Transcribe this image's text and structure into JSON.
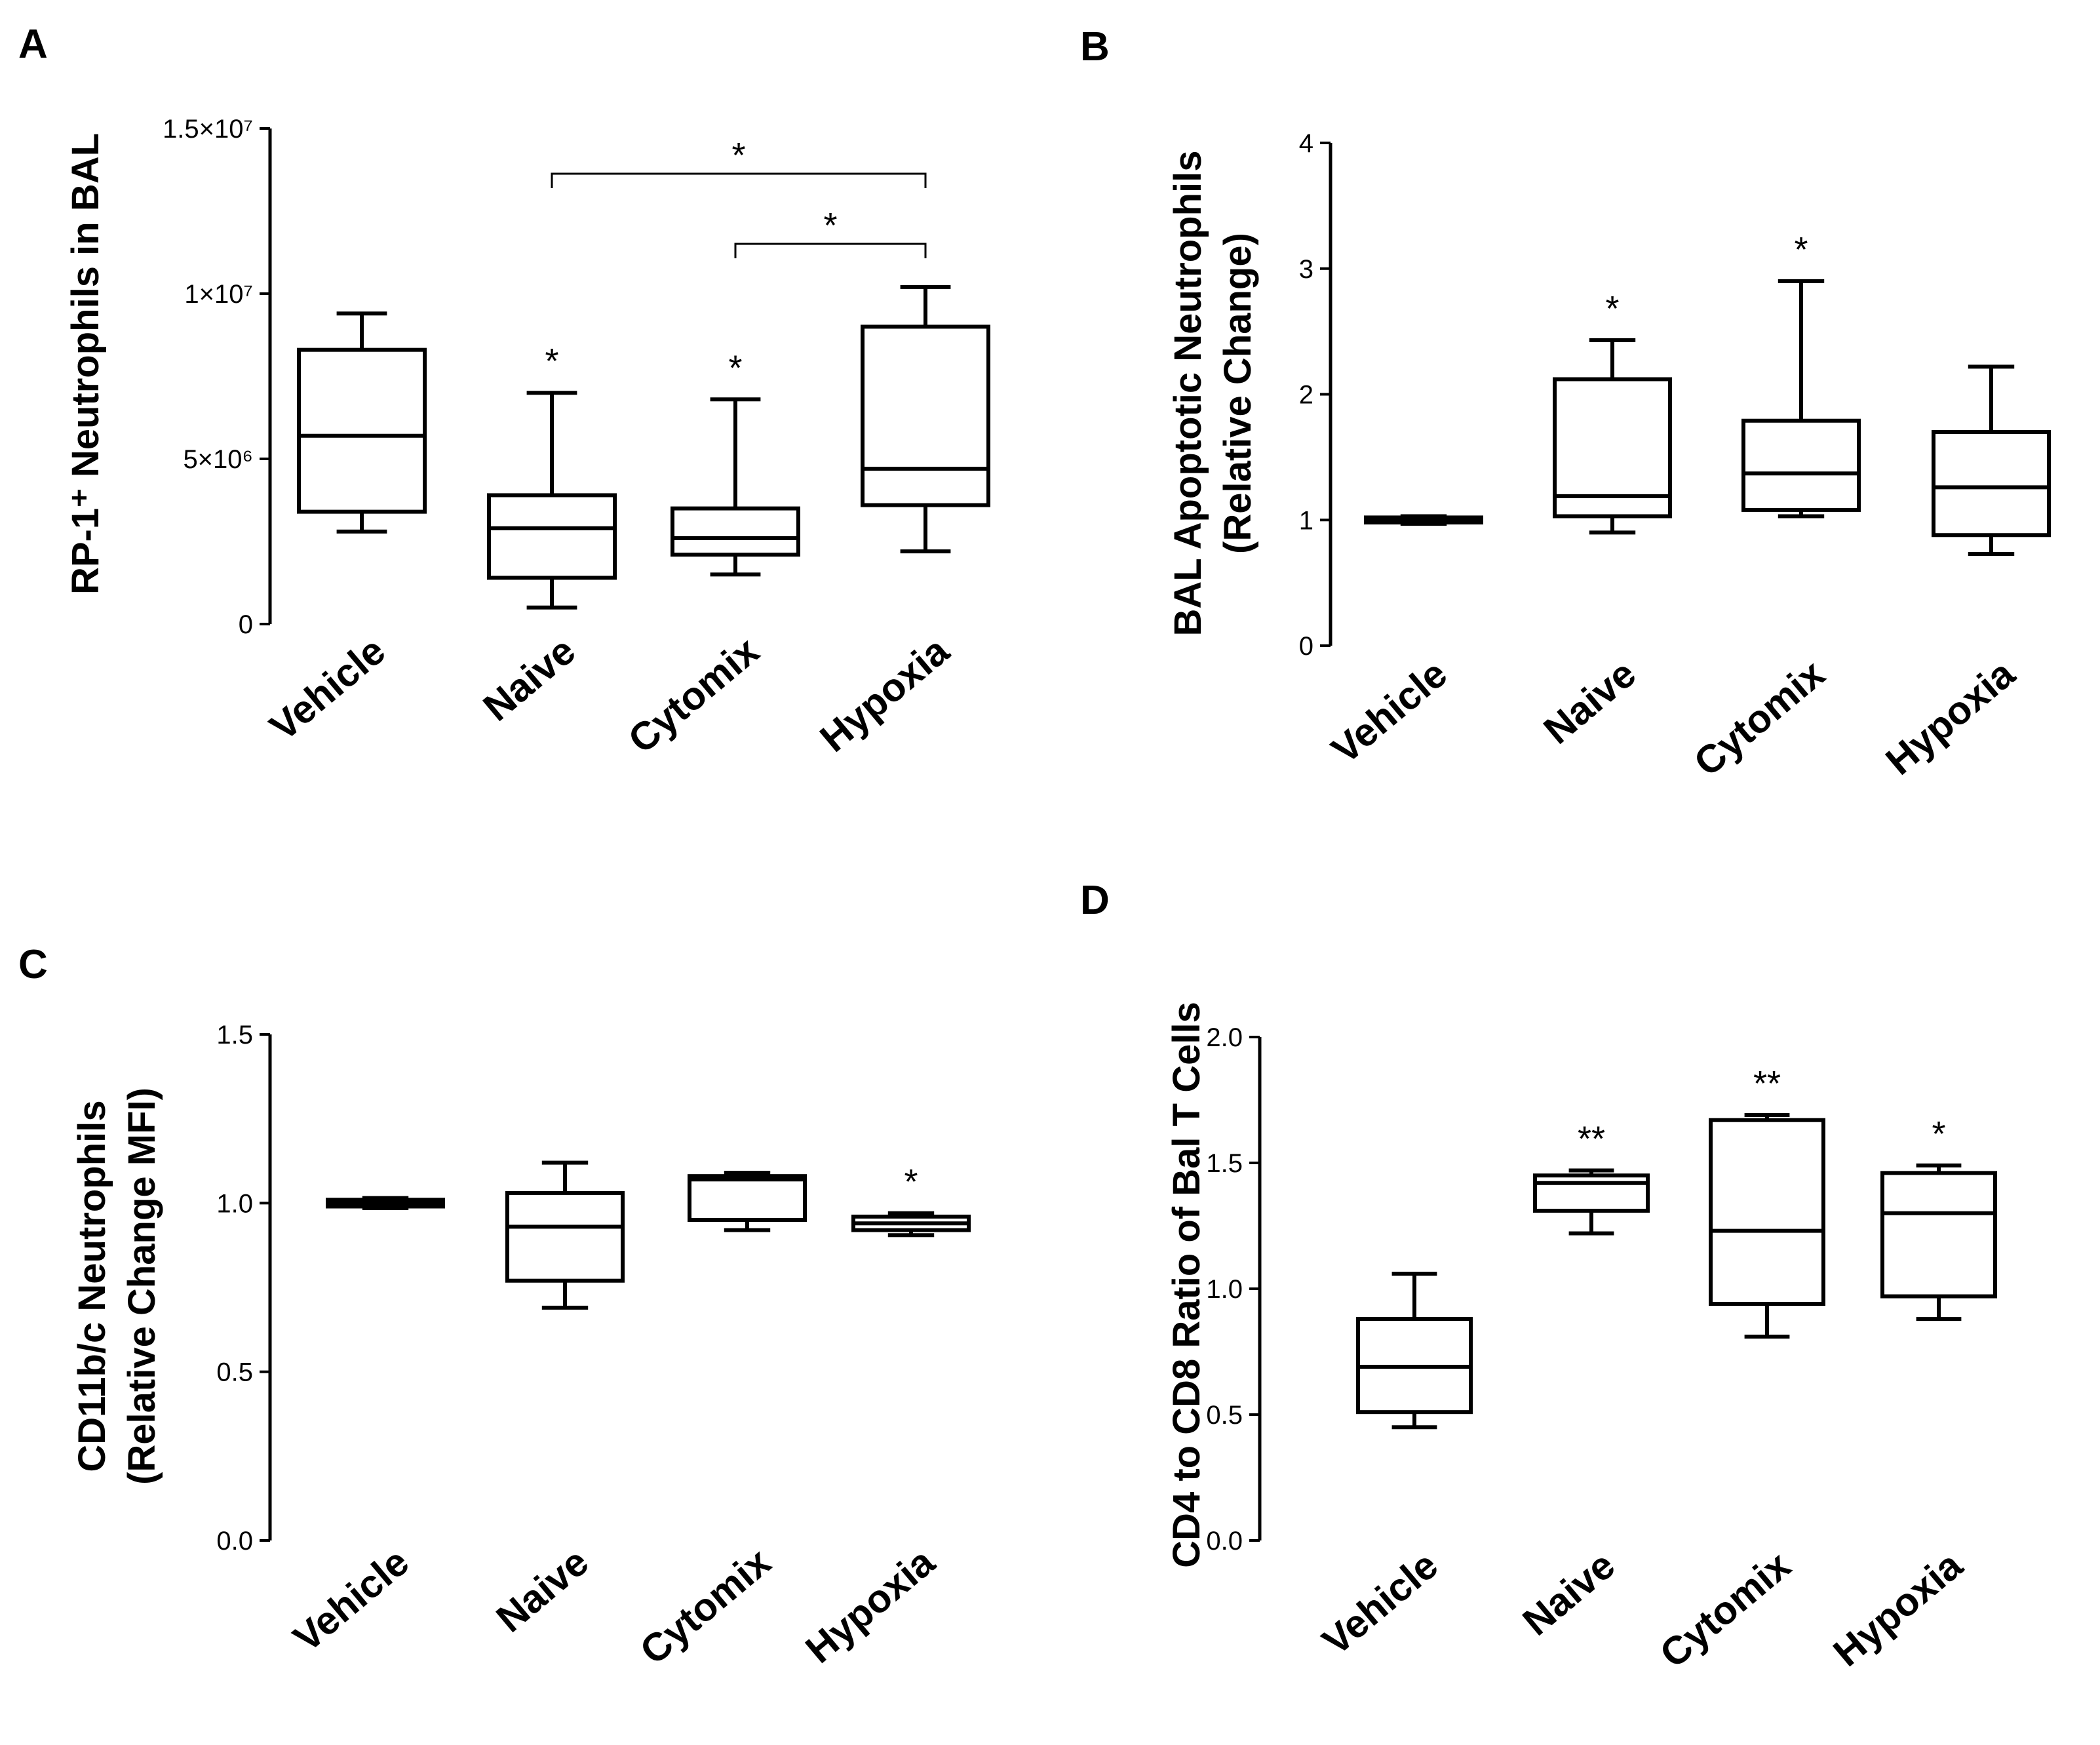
{
  "chart_data": [
    {
      "panel": "A",
      "type": "box",
      "ylabel": "RP-1⁺ Neutrophils in  BAL",
      "categories": [
        "Vehicle",
        "Naive",
        "Cytomix",
        "Hypoxia"
      ],
      "ylim": [
        0,
        15000000
      ],
      "yticks": [
        {
          "value": 0,
          "label": "0"
        },
        {
          "value": 5000000,
          "label": "5×10⁶"
        },
        {
          "value": 10000000,
          "label": "1×10⁷"
        },
        {
          "value": 15000000,
          "label": "1.5×10⁷"
        }
      ],
      "boxes": [
        {
          "min": 2800000,
          "q1": 3400000,
          "median": 5700000,
          "q3": 8300000,
          "max": 9400000,
          "annotation": ""
        },
        {
          "min": 500000,
          "q1": 1400000,
          "median": 2900000,
          "q3": 3900000,
          "max": 7000000,
          "annotation": "*"
        },
        {
          "min": 1500000,
          "q1": 2100000,
          "median": 2600000,
          "q3": 3500000,
          "max": 6800000,
          "annotation": "*"
        },
        {
          "min": 2200000,
          "q1": 3600000,
          "median": 4700000,
          "q3": 9000000,
          "max": 10200000,
          "annotation": ""
        }
      ],
      "brackets": [
        {
          "from": 1,
          "to": 3,
          "label": "*"
        },
        {
          "from": 2,
          "to": 3,
          "label": "*"
        }
      ]
    },
    {
      "panel": "B",
      "type": "box",
      "ylabel": "BAL Apoptotic Neutrophils\n(Relative Change)",
      "categories": [
        "Vehicle",
        "Naive",
        "Cytomix",
        "Hypoxia"
      ],
      "ylim": [
        0,
        4
      ],
      "yticks": [
        {
          "value": 0,
          "label": "0"
        },
        {
          "value": 1,
          "label": "1"
        },
        {
          "value": 2,
          "label": "2"
        },
        {
          "value": 3,
          "label": "3"
        },
        {
          "value": 4,
          "label": "4"
        }
      ],
      "boxes": [
        {
          "min": 0.97,
          "q1": 0.98,
          "median": 1.0,
          "q3": 1.02,
          "max": 1.03,
          "annotation": ""
        },
        {
          "min": 0.9,
          "q1": 1.03,
          "median": 1.19,
          "q3": 2.12,
          "max": 2.43,
          "annotation": "*"
        },
        {
          "min": 1.03,
          "q1": 1.08,
          "median": 1.37,
          "q3": 1.79,
          "max": 2.9,
          "annotation": "*"
        },
        {
          "min": 0.73,
          "q1": 0.88,
          "median": 1.26,
          "q3": 1.7,
          "max": 2.22,
          "annotation": ""
        }
      ],
      "brackets": []
    },
    {
      "panel": "C",
      "type": "box",
      "ylabel": "CD11b/c Neutrophils\n(Relative Change MFI)",
      "categories": [
        "Vehicle",
        "Naive",
        "Cytomix",
        "Hypoxia"
      ],
      "ylim": [
        0,
        1.5
      ],
      "yticks": [
        {
          "value": 0,
          "label": "0.0"
        },
        {
          "value": 0.5,
          "label": "0.5"
        },
        {
          "value": 1,
          "label": "1.0"
        },
        {
          "value": 1.5,
          "label": "1.5"
        }
      ],
      "boxes": [
        {
          "min": 0.985,
          "q1": 0.99,
          "median": 1.0,
          "q3": 1.01,
          "max": 1.015,
          "annotation": ""
        },
        {
          "min": 0.69,
          "q1": 0.77,
          "median": 0.93,
          "q3": 1.03,
          "max": 1.12,
          "annotation": ""
        },
        {
          "min": 0.92,
          "q1": 0.95,
          "median": 1.07,
          "q3": 1.08,
          "max": 1.09,
          "annotation": ""
        },
        {
          "min": 0.905,
          "q1": 0.92,
          "median": 0.94,
          "q3": 0.96,
          "max": 0.97,
          "annotation": "*"
        }
      ],
      "brackets": []
    },
    {
      "panel": "D",
      "type": "box",
      "ylabel": "CD4 to CD8 Ratio of Bal T Cells",
      "categories": [
        "Vehicle",
        "Naive",
        "Cytomix",
        "Hypoxia"
      ],
      "ylim": [
        0,
        2.0
      ],
      "yticks": [
        {
          "value": 0,
          "label": "0.0"
        },
        {
          "value": 0.5,
          "label": "0.5"
        },
        {
          "value": 1,
          "label": "1.0"
        },
        {
          "value": 1.5,
          "label": "1.5"
        },
        {
          "value": 2,
          "label": "2.0"
        }
      ],
      "boxes": [
        {
          "min": 0.45,
          "q1": 0.51,
          "median": 0.69,
          "q3": 0.88,
          "max": 1.06,
          "annotation": ""
        },
        {
          "min": 1.22,
          "q1": 1.31,
          "median": 1.42,
          "q3": 1.45,
          "max": 1.47,
          "annotation": "**"
        },
        {
          "min": 0.81,
          "q1": 0.94,
          "median": 1.23,
          "q3": 1.67,
          "max": 1.69,
          "annotation": "**"
        },
        {
          "min": 0.88,
          "q1": 0.97,
          "median": 1.3,
          "q3": 1.46,
          "max": 1.49,
          "annotation": "*"
        }
      ],
      "brackets": []
    }
  ]
}
